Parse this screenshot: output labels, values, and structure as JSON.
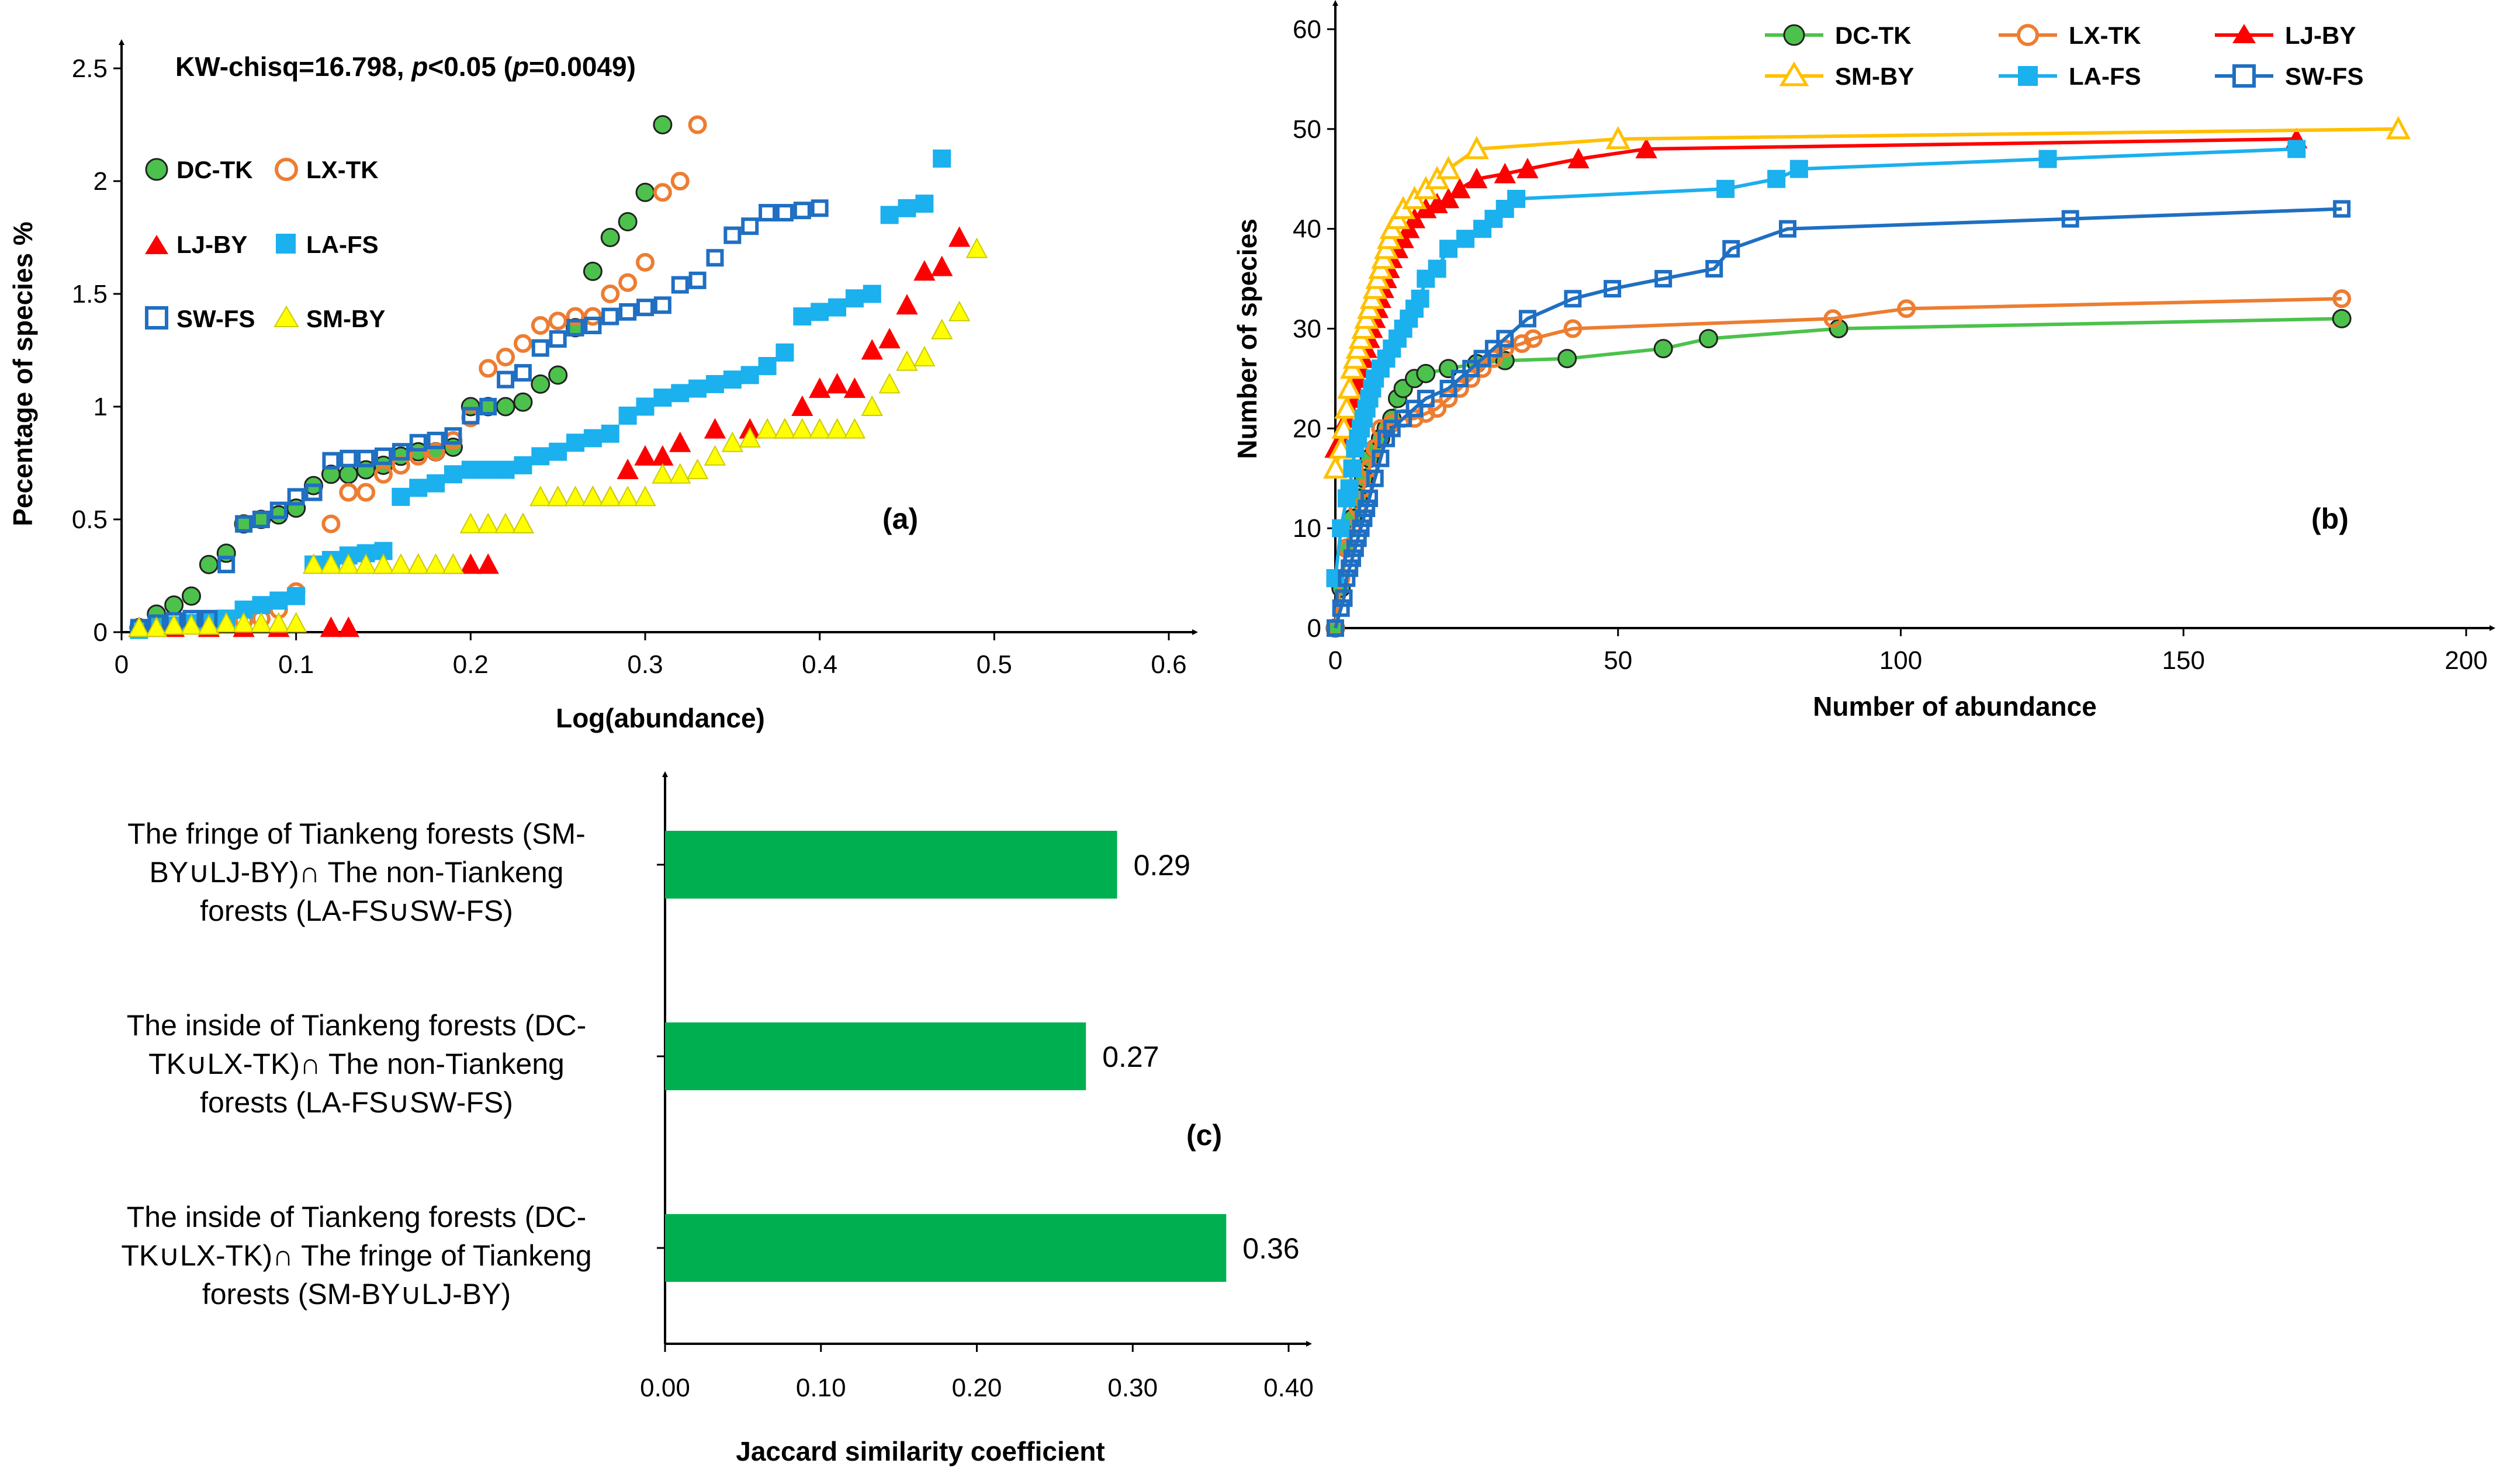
{
  "chart_data": [
    {
      "id": "a",
      "type": "scatter",
      "panel_label": "(a)",
      "annotation": "KW-chisq=16.798, p<0.05 (p=0.0049)",
      "annotation_parts": [
        "KW-chisq=16.798, ",
        "p",
        "<0.05 (",
        "p",
        "=0.0049)"
      ],
      "xlabel": "Log(abundance)",
      "ylabel": "Pecentage of species %",
      "xlim": [
        0,
        0.6
      ],
      "ylim": [
        0,
        2.5
      ],
      "xticks": [
        0,
        0.1,
        0.2,
        0.3,
        0.4,
        0.5,
        0.6
      ],
      "xtick_labels": [
        "0",
        "0.1",
        "0.2",
        "0.3",
        "0.4",
        "0.5",
        "0.6"
      ],
      "yticks": [
        0,
        0.5,
        1,
        1.5,
        2,
        2.5
      ],
      "ytick_labels": [
        "0",
        "0.5",
        "1",
        "1.5",
        "2",
        "2.5"
      ],
      "legend": [
        "DC-TK",
        "LX-TK",
        "LJ-BY",
        "LA-FS",
        "SW-FS",
        "SM-BY"
      ],
      "series": [
        {
          "name": "DC-TK",
          "marker": "circle-filled",
          "color": "#4cc24c",
          "edge": "#222222",
          "x": [
            0.01,
            0.02,
            0.03,
            0.04,
            0.05,
            0.06,
            0.07,
            0.08,
            0.09,
            0.1,
            0.11,
            0.12,
            0.13,
            0.14,
            0.15,
            0.16,
            0.17,
            0.18,
            0.19,
            0.2,
            0.21,
            0.22,
            0.23,
            0.24,
            0.25,
            0.26,
            0.27,
            0.28,
            0.29,
            0.3,
            0.31
          ],
          "y": [
            0.02,
            0.08,
            0.12,
            0.16,
            0.3,
            0.35,
            0.48,
            0.5,
            0.52,
            0.55,
            0.65,
            0.7,
            0.7,
            0.72,
            0.74,
            0.78,
            0.8,
            0.8,
            0.82,
            1.0,
            1.0,
            1.0,
            1.02,
            1.1,
            1.14,
            1.35,
            1.6,
            1.75,
            1.82,
            1.95,
            2.25
          ]
        },
        {
          "name": "LX-TK",
          "marker": "circle-open",
          "color": "#ed7d31",
          "x": [
            0.02,
            0.03,
            0.04,
            0.05,
            0.06,
            0.07,
            0.08,
            0.09,
            0.1,
            0.12,
            0.13,
            0.14,
            0.15,
            0.16,
            0.17,
            0.18,
            0.19,
            0.2,
            0.21,
            0.22,
            0.23,
            0.24,
            0.25,
            0.26,
            0.27,
            0.28,
            0.29,
            0.3,
            0.31,
            0.32,
            0.33
          ],
          "y": [
            0.02,
            0.03,
            0.04,
            0.04,
            0.05,
            0.05,
            0.06,
            0.1,
            0.18,
            0.48,
            0.62,
            0.62,
            0.7,
            0.74,
            0.78,
            0.8,
            0.85,
            0.95,
            1.17,
            1.22,
            1.28,
            1.36,
            1.38,
            1.4,
            1.4,
            1.5,
            1.55,
            1.64,
            1.95,
            2.0,
            2.25
          ]
        },
        {
          "name": "LJ-BY",
          "marker": "triangle-filled",
          "color": "#ff0000",
          "x": [
            0.01,
            0.02,
            0.03,
            0.05,
            0.07,
            0.09,
            0.12,
            0.13,
            0.15,
            0.17,
            0.19,
            0.2,
            0.21,
            0.23,
            0.25,
            0.27,
            0.28,
            0.29,
            0.3,
            0.31,
            0.32,
            0.34,
            0.36,
            0.38,
            0.39,
            0.4,
            0.41,
            0.42,
            0.43,
            0.44,
            0.45,
            0.46,
            0.47,
            0.48
          ],
          "y": [
            0.02,
            0.02,
            0.02,
            0.02,
            0.02,
            0.02,
            0.02,
            0.02,
            0.3,
            0.3,
            0.3,
            0.3,
            0.3,
            0.48,
            0.6,
            0.6,
            0.6,
            0.72,
            0.78,
            0.78,
            0.84,
            0.9,
            0.9,
            0.9,
            1.0,
            1.08,
            1.1,
            1.08,
            1.25,
            1.3,
            1.45,
            1.6,
            1.62,
            1.75
          ]
        },
        {
          "name": "LA-FS",
          "marker": "square-filled",
          "color": "#1bb0ee",
          "x": [
            0.01,
            0.02,
            0.03,
            0.04,
            0.05,
            0.06,
            0.07,
            0.08,
            0.09,
            0.1,
            0.11,
            0.12,
            0.13,
            0.14,
            0.15,
            0.16,
            0.17,
            0.18,
            0.19,
            0.2,
            0.21,
            0.22,
            0.23,
            0.24,
            0.25,
            0.26,
            0.27,
            0.28,
            0.29,
            0.3,
            0.31,
            0.32,
            0.33,
            0.34,
            0.35,
            0.36,
            0.37,
            0.38,
            0.39,
            0.4,
            0.41,
            0.42,
            0.43,
            0.44,
            0.45,
            0.46,
            0.47
          ],
          "y": [
            0.01,
            0.02,
            0.03,
            0.04,
            0.05,
            0.06,
            0.1,
            0.12,
            0.14,
            0.16,
            0.3,
            0.32,
            0.34,
            0.35,
            0.36,
            0.6,
            0.64,
            0.66,
            0.7,
            0.72,
            0.72,
            0.72,
            0.74,
            0.78,
            0.8,
            0.84,
            0.86,
            0.88,
            0.96,
            1.0,
            1.04,
            1.06,
            1.08,
            1.1,
            1.12,
            1.14,
            1.18,
            1.24,
            1.4,
            1.42,
            1.44,
            1.48,
            1.5,
            1.85,
            1.88,
            1.9,
            2.1
          ]
        },
        {
          "name": "SW-FS",
          "marker": "square-open",
          "color": "#1f6fc2",
          "x": [
            0.01,
            0.02,
            0.03,
            0.04,
            0.05,
            0.06,
            0.07,
            0.08,
            0.09,
            0.1,
            0.11,
            0.12,
            0.13,
            0.14,
            0.15,
            0.16,
            0.17,
            0.18,
            0.19,
            0.2,
            0.21,
            0.22,
            0.23,
            0.24,
            0.25,
            0.26,
            0.27,
            0.28,
            0.29,
            0.3,
            0.31,
            0.32,
            0.33,
            0.34,
            0.35,
            0.36,
            0.37,
            0.38,
            0.39,
            0.4
          ],
          "y": [
            0.02,
            0.04,
            0.05,
            0.06,
            0.06,
            0.3,
            0.48,
            0.5,
            0.54,
            0.6,
            0.62,
            0.76,
            0.77,
            0.77,
            0.78,
            0.8,
            0.84,
            0.85,
            0.87,
            0.96,
            1.0,
            1.12,
            1.15,
            1.26,
            1.3,
            1.35,
            1.36,
            1.4,
            1.42,
            1.44,
            1.45,
            1.54,
            1.56,
            1.66,
            1.76,
            1.8,
            1.86,
            1.86,
            1.87,
            1.88
          ]
        },
        {
          "name": "SM-BY",
          "marker": "triangle-filled",
          "color": "#ffff00",
          "edge": "#cccc00",
          "x": [
            0.01,
            0.02,
            0.03,
            0.04,
            0.05,
            0.06,
            0.07,
            0.08,
            0.09,
            0.1,
            0.11,
            0.12,
            0.13,
            0.14,
            0.15,
            0.16,
            0.17,
            0.18,
            0.19,
            0.2,
            0.21,
            0.22,
            0.23,
            0.24,
            0.25,
            0.26,
            0.27,
            0.28,
            0.29,
            0.3,
            0.31,
            0.32,
            0.33,
            0.34,
            0.35,
            0.36,
            0.37,
            0.38,
            0.39,
            0.4,
            0.41,
            0.42,
            0.43,
            0.44,
            0.45,
            0.46,
            0.47,
            0.48,
            0.49
          ],
          "y": [
            0.02,
            0.02,
            0.03,
            0.03,
            0.03,
            0.04,
            0.04,
            0.04,
            0.04,
            0.04,
            0.3,
            0.3,
            0.3,
            0.3,
            0.3,
            0.3,
            0.3,
            0.3,
            0.3,
            0.48,
            0.48,
            0.48,
            0.48,
            0.6,
            0.6,
            0.6,
            0.6,
            0.6,
            0.6,
            0.6,
            0.7,
            0.7,
            0.72,
            0.78,
            0.84,
            0.86,
            0.9,
            0.9,
            0.9,
            0.9,
            0.9,
            0.9,
            1.0,
            1.1,
            1.2,
            1.22,
            1.34,
            1.42,
            1.7
          ]
        }
      ]
    },
    {
      "id": "b",
      "type": "line",
      "panel_label": "(b)",
      "xlabel": "Number of abundance",
      "ylabel": "Number of species",
      "xlim": [
        0,
        200
      ],
      "ylim": [
        0,
        60
      ],
      "xticks": [
        0,
        50,
        100,
        150,
        200
      ],
      "xtick_labels": [
        "0",
        "50",
        "100",
        "150",
        "200"
      ],
      "yticks": [
        0,
        10,
        20,
        30,
        40,
        50,
        60
      ],
      "ytick_labels": [
        "0",
        "10",
        "20",
        "30",
        "40",
        "50",
        "60"
      ],
      "legend": [
        "DC-TK",
        "LX-TK",
        "LJ-BY",
        "SM-BY",
        "LA-FS",
        "SW-FS"
      ],
      "series": [
        {
          "name": "DC-TK",
          "marker": "circle-filled",
          "color": "#4cc24c",
          "edge": "#222222",
          "x": [
            0,
            1,
            2,
            3,
            4,
            5,
            6,
            7,
            8,
            9,
            10,
            11,
            12,
            14,
            16,
            20,
            25,
            30,
            41,
            58,
            66,
            89,
            178
          ],
          "y": [
            0,
            4,
            8,
            11,
            13,
            15,
            17,
            18,
            19,
            20,
            21,
            23,
            24,
            25,
            25.5,
            26,
            26.5,
            26.8,
            27,
            28,
            29,
            30,
            31
          ]
        },
        {
          "name": "LX-TK",
          "marker": "circle-open",
          "color": "#ed7d31",
          "x": [
            0,
            1,
            2,
            3,
            4,
            5,
            6,
            7,
            8,
            10,
            12,
            14,
            16,
            18,
            20,
            22,
            24,
            26,
            28,
            30,
            33,
            35,
            42,
            88,
            101,
            178
          ],
          "y": [
            0,
            5,
            8,
            10,
            12,
            14,
            16,
            18,
            20,
            20.5,
            21,
            21,
            21.5,
            22,
            23,
            24,
            25,
            26,
            27,
            28,
            28.5,
            29,
            30,
            31,
            32,
            33
          ]
        },
        {
          "name": "LJ-BY",
          "marker": "triangle-filled",
          "color": "#ff0000",
          "x": [
            0,
            1,
            1.5,
            2,
            2.5,
            3,
            3.5,
            4,
            4.5,
            5,
            5.5,
            6,
            6.5,
            7,
            7.5,
            8,
            8.5,
            9,
            9.5,
            10,
            11,
            12,
            13,
            14,
            16,
            18,
            20,
            22,
            25,
            30,
            34,
            43,
            55,
            170
          ],
          "y": [
            18,
            19,
            20,
            21,
            22,
            23,
            24,
            25,
            26,
            27,
            28,
            29,
            30,
            31,
            32,
            33,
            34,
            35,
            36,
            37,
            38,
            39,
            40,
            41,
            42,
            42.5,
            43,
            44,
            45,
            45.5,
            46,
            47,
            48,
            49
          ]
        },
        {
          "name": "SM-BY",
          "marker": "triangle-open",
          "color": "#ffc000",
          "x": [
            0,
            1,
            1.5,
            2,
            2.5,
            3,
            3.5,
            4,
            4.5,
            5,
            5.5,
            6,
            6.5,
            7,
            7.5,
            8,
            8.5,
            9,
            9.5,
            10,
            11,
            12,
            14,
            16,
            18,
            20,
            25,
            50,
            188
          ],
          "y": [
            16,
            18,
            20,
            22,
            24,
            26,
            27,
            28,
            29,
            30,
            31,
            32,
            33,
            34,
            35,
            36,
            37,
            38,
            39,
            40,
            41,
            42,
            43,
            44,
            45,
            46,
            48,
            49,
            50
          ]
        },
        {
          "name": "LA-FS",
          "marker": "square-filled",
          "color": "#1bb0ee",
          "x": [
            0,
            1,
            2,
            2.5,
            3,
            3.5,
            4,
            4.5,
            5,
            5.5,
            6,
            6.5,
            7,
            8,
            9,
            10,
            11,
            12,
            13,
            14,
            15,
            16,
            18,
            20,
            23,
            26,
            28,
            30,
            32,
            69,
            78,
            82,
            126,
            170
          ],
          "y": [
            5,
            10,
            13,
            14,
            16,
            18,
            19,
            20,
            21,
            22,
            23,
            24,
            25,
            26,
            27,
            28,
            29,
            30,
            31,
            32,
            33,
            35,
            36,
            38,
            39,
            40,
            41,
            42,
            43,
            44,
            45,
            46,
            47,
            48
          ]
        },
        {
          "name": "SW-FS",
          "marker": "square-open",
          "color": "#1f6fc2",
          "x": [
            0,
            1,
            1.5,
            2,
            2.5,
            3,
            3.5,
            4,
            4.5,
            5,
            5.5,
            6,
            7,
            8,
            9,
            10,
            12,
            14,
            16,
            20,
            22,
            24,
            26,
            28,
            30,
            34,
            42,
            49,
            58,
            67,
            70,
            80,
            130,
            178
          ],
          "y": [
            0,
            2,
            3,
            5,
            6,
            7,
            8,
            9,
            10,
            11,
            12,
            13,
            15,
            17,
            19,
            20,
            21,
            22,
            23,
            24,
            25,
            26,
            27,
            28,
            29,
            31,
            33,
            34,
            35,
            36,
            38,
            40,
            41,
            42
          ]
        }
      ]
    },
    {
      "id": "c",
      "type": "bar",
      "orientation": "horizontal",
      "panel_label": "(c)",
      "xlabel": "Jaccard similarity coefficient",
      "xlim": [
        0,
        0.4
      ],
      "xticks": [
        0,
        0.1,
        0.2,
        0.3,
        0.4
      ],
      "xtick_labels": [
        "0.00",
        "0.10",
        "0.20",
        "0.30",
        "0.40"
      ],
      "color": "#00b050",
      "categories": [
        [
          "The fringe of Tiankeng forests (SM-",
          "BY∪LJ-BY)∩ The non-Tiankeng",
          "forests (LA-FS∪SW-FS)"
        ],
        [
          "The inside of Tiankeng forests (DC-",
          "TK∪LX-TK)∩ The non-Tiankeng",
          "forests (LA-FS∪SW-FS)"
        ],
        [
          "The inside of Tiankeng forests  (DC-",
          "TK∪LX-TK)∩ The fringe of Tiankeng",
          "forests (SM-BY∪LJ-BY)"
        ]
      ],
      "values": [
        0.29,
        0.27,
        0.36
      ],
      "value_labels": [
        "0.29",
        "0.27",
        "0.36"
      ]
    }
  ]
}
